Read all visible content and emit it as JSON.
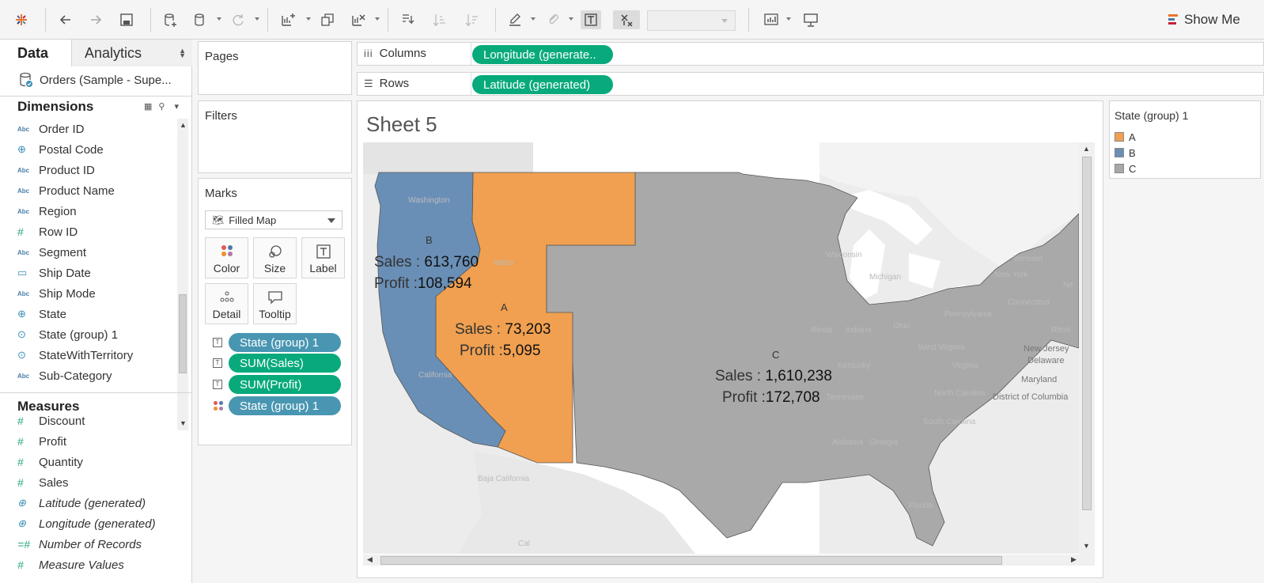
{
  "toolbar": {
    "show_me_label": "Show Me",
    "icons": [
      "tableau-logo-icon",
      "undo-icon",
      "redo-icon",
      "save-icon",
      "new-datasource-icon",
      "pause-updates-icon",
      "refresh-icon",
      "new-worksheet-icon",
      "duplicate-sheet-icon",
      "clear-sheet-icon",
      "swap-rows-columns-icon",
      "sort-ascending-icon",
      "sort-descending-icon",
      "highlight-icon",
      "group-members-icon",
      "show-mark-labels-icon",
      "fix-axes-icon",
      "show-me-icon",
      "presentation-mode-icon"
    ]
  },
  "data_pane": {
    "tab_data": "Data",
    "tab_analytics": "Analytics",
    "datasource": "Orders (Sample - Supe...",
    "dimensions_header": "Dimensions",
    "measures_header": "Measures",
    "dimensions": [
      {
        "label": "Order ID",
        "type": "Abc"
      },
      {
        "label": "Postal Code",
        "type": "geo"
      },
      {
        "label": "Product ID",
        "type": "Abc"
      },
      {
        "label": "Product Name",
        "type": "Abc"
      },
      {
        "label": "Region",
        "type": "Abc"
      },
      {
        "label": "Row ID",
        "type": "#"
      },
      {
        "label": "Segment",
        "type": "Abc"
      },
      {
        "label": "Ship Date",
        "type": "date"
      },
      {
        "label": "Ship Mode",
        "type": "Abc"
      },
      {
        "label": "State",
        "type": "geo"
      },
      {
        "label": "State (group) 1",
        "type": "group"
      },
      {
        "label": "StateWithTerritory",
        "type": "group"
      },
      {
        "label": "Sub-Category",
        "type": "Abc"
      }
    ],
    "measures": [
      {
        "label": "Discount",
        "type": "#"
      },
      {
        "label": "Profit",
        "type": "#"
      },
      {
        "label": "Quantity",
        "type": "#"
      },
      {
        "label": "Sales",
        "type": "#"
      },
      {
        "label": "Latitude (generated)",
        "type": "geo"
      },
      {
        "label": "Longitude (generated)",
        "type": "geo"
      },
      {
        "label": "Number of Records",
        "type": "=#"
      },
      {
        "label": "Measure Values",
        "type": "#"
      }
    ]
  },
  "pages": {
    "title": "Pages"
  },
  "filters": {
    "title": "Filters"
  },
  "marks": {
    "title": "Marks",
    "mark_type": "Filled Map",
    "buttons": [
      "Color",
      "Size",
      "Label",
      "Detail",
      "Tooltip"
    ],
    "pills": [
      {
        "label": "State (group) 1",
        "kind": "text",
        "color": "blue"
      },
      {
        "label": "SUM(Sales)",
        "kind": "text",
        "color": "green"
      },
      {
        "label": "SUM(Profit)",
        "kind": "text",
        "color": "green"
      },
      {
        "label": "State (group) 1",
        "kind": "color",
        "color": "blue"
      }
    ]
  },
  "shelves": {
    "columns_label": "Columns",
    "columns_pill": "Longitude (generate..",
    "rows_label": "Rows",
    "rows_pill": "Latitude (generated)"
  },
  "sheet": {
    "title": "Sheet 5",
    "regions": [
      {
        "group": "B",
        "sales_label": "Sales : ",
        "sales": "613,760",
        "profit_label": "Profit :",
        "profit": "108,594",
        "color": "#6a8fb6"
      },
      {
        "group": "A",
        "sales_label": "Sales : ",
        "sales": "73,203",
        "profit_label": "Profit :",
        "profit": "5,095",
        "color": "#f0a050"
      },
      {
        "group": "C",
        "sales_label": "Sales : ",
        "sales": "1,610,238",
        "profit_label": "Profit :",
        "profit": "172,708",
        "color": "#a9a9a9"
      }
    ],
    "basemap_labels": [
      "Washington",
      "Idaho",
      "California",
      "Baja California",
      "Cal",
      "Michigan",
      "New York",
      "Vermont",
      "Connecticut",
      "Pennsylvania",
      "Ohio",
      "Indiana",
      "Illinois",
      "West Virginia",
      "Virginia",
      "Kentucky",
      "Tennessee",
      "North Carolina",
      "South Carolina",
      "Alabama",
      "Georgia",
      "Florida",
      "New Jersey",
      "Delaware",
      "Maryland",
      "District of Columbia",
      "Rhod",
      "Ne",
      "Wisconsin"
    ]
  },
  "legend": {
    "title": "State (group) 1",
    "items": [
      {
        "label": "A",
        "color": "#f0a050"
      },
      {
        "label": "B",
        "color": "#6a8fb6"
      },
      {
        "label": "C",
        "color": "#a9a9a9"
      }
    ]
  }
}
